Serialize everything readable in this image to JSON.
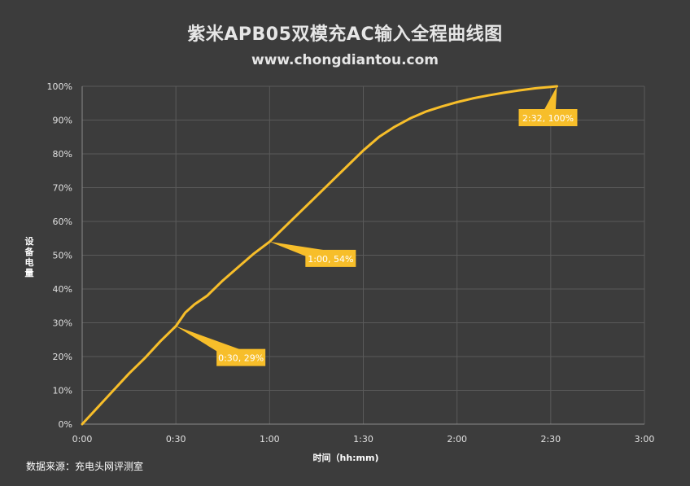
{
  "title": "紫米APB05双模充AC输入全程曲线图",
  "subtitle": "www.chongdiantou.com",
  "source": "数据来源：充电头网评测室",
  "colors": {
    "background": "#3c3c3c",
    "grid": "#5a5a5a",
    "line": "#f7be2a",
    "callout": "#f7be2a"
  },
  "chart_data": {
    "type": "line",
    "xlabel": "时间（hh:mm)",
    "ylabel": "设备电量",
    "xlim": [
      "0:00",
      "3:00"
    ],
    "ylim": [
      0,
      100
    ],
    "x_ticks": [
      "0:00",
      "0:30",
      "1:00",
      "1:30",
      "2:00",
      "2:30",
      "3:00"
    ],
    "y_ticks": [
      "0%",
      "10%",
      "20%",
      "30%",
      "40%",
      "50%",
      "60%",
      "70%",
      "80%",
      "90%",
      "100%"
    ],
    "grid": true,
    "series": [
      {
        "x": [
          "0:00",
          "0:05",
          "0:10",
          "0:15",
          "0:20",
          "0:25",
          "0:30",
          "0:33",
          "0:36",
          "0:40",
          "0:45",
          "0:50",
          "0:55",
          "1:00",
          "1:05",
          "1:10",
          "1:15",
          "1:20",
          "1:25",
          "1:30",
          "1:35",
          "1:40",
          "1:45",
          "1:50",
          "1:55",
          "2:00",
          "2:05",
          "2:10",
          "2:15",
          "2:20",
          "2:25",
          "2:30",
          "2:32"
        ],
        "values": [
          0,
          5,
          10,
          15,
          19.5,
          24.5,
          29,
          33,
          35.5,
          38,
          42.5,
          46.5,
          50.5,
          54,
          58.5,
          63,
          67.5,
          72,
          76.5,
          81,
          85,
          88,
          90.5,
          92.5,
          94,
          95.3,
          96.4,
          97.3,
          98.1,
          98.8,
          99.4,
          99.8,
          100
        ]
      }
    ],
    "annotations": [
      {
        "x": "0:30",
        "y": 29,
        "label": "0:30, 29%"
      },
      {
        "x": "1:00",
        "y": 54,
        "label": "1:00, 54%"
      },
      {
        "x": "2:32",
        "y": 100,
        "label": "2:32, 100%"
      }
    ]
  }
}
